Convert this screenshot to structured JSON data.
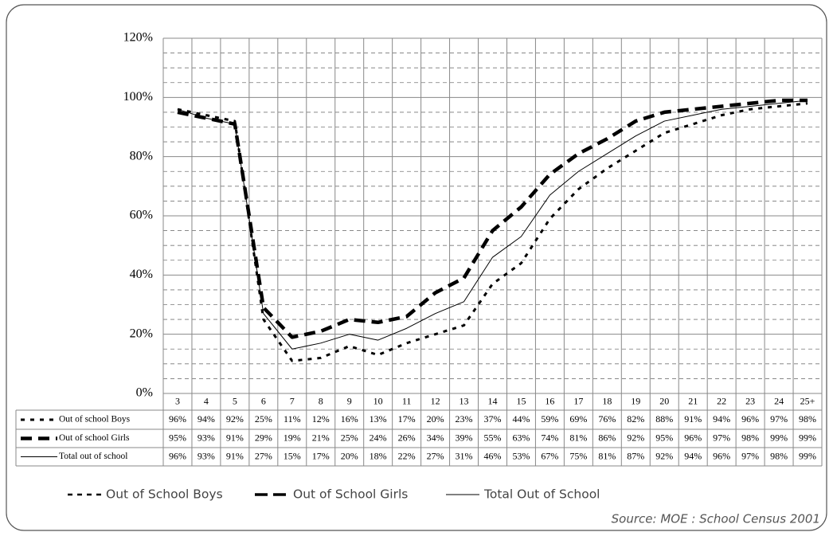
{
  "chart_data": {
    "type": "line",
    "categories": [
      "3",
      "4",
      "5",
      "6",
      "7",
      "8",
      "9",
      "10",
      "11",
      "12",
      "13",
      "14",
      "15",
      "16",
      "17",
      "18",
      "19",
      "20",
      "21",
      "22",
      "23",
      "24",
      "25+"
    ],
    "series": [
      {
        "name": "Out of school Boys",
        "color": "#000000",
        "values": [
          96,
          94,
          92,
          25,
          11,
          12,
          16,
          13,
          17,
          20,
          23,
          37,
          44,
          59,
          69,
          76,
          82,
          88,
          91,
          94,
          96,
          97,
          98
        ],
        "value_labels": [
          "96%",
          "94%",
          "92%",
          "25%",
          "11%",
          "12%",
          "16%",
          "13%",
          "17%",
          "20%",
          "23%",
          "37%",
          "44%",
          "59%",
          "69%",
          "76%",
          "82%",
          "88%",
          "91%",
          "94%",
          "96%",
          "97%",
          "98%"
        ]
      },
      {
        "name": "Out of school Girls",
        "color": "#000000",
        "values": [
          95,
          93,
          91,
          29,
          19,
          21,
          25,
          24,
          26,
          34,
          39,
          55,
          63,
          74,
          81,
          86,
          92,
          95,
          96,
          97,
          98,
          99,
          99
        ],
        "value_labels": [
          "95%",
          "93%",
          "91%",
          "29%",
          "19%",
          "21%",
          "25%",
          "24%",
          "26%",
          "34%",
          "39%",
          "55%",
          "63%",
          "74%",
          "81%",
          "86%",
          "92%",
          "95%",
          "96%",
          "97%",
          "98%",
          "99%",
          "99%"
        ]
      },
      {
        "name": "Total out of school",
        "color": "#000000",
        "values": [
          96,
          93,
          91,
          27,
          15,
          17,
          20,
          18,
          22,
          27,
          31,
          46,
          53,
          67,
          75,
          81,
          87,
          92,
          94,
          96,
          97,
          98,
          99
        ],
        "value_labels": [
          "96%",
          "93%",
          "91%",
          "27%",
          "15%",
          "17%",
          "20%",
          "18%",
          "22%",
          "27%",
          "31%",
          "46%",
          "53%",
          "67%",
          "75%",
          "81%",
          "87%",
          "92%",
          "94%",
          "96%",
          "97%",
          "98%",
          "99%"
        ]
      }
    ],
    "legend_labels": [
      "Out of School  Boys",
      "Out of School  Girls",
      "Total Out of School"
    ],
    "ylim": [
      0,
      120
    ],
    "yticks": [
      {
        "value": 0,
        "label": "0%"
      },
      {
        "value": 20,
        "label": "20%"
      },
      {
        "value": 40,
        "label": "40%"
      },
      {
        "value": 60,
        "label": "60%"
      },
      {
        "value": 80,
        "label": "80%"
      },
      {
        "value": 100,
        "label": "100%"
      },
      {
        "value": 120,
        "label": "120%"
      }
    ],
    "minor_yticks": [
      5,
      10,
      15,
      25,
      30,
      35,
      45,
      50,
      55,
      65,
      70,
      75,
      85,
      90,
      95,
      105,
      110,
      115
    ],
    "grid": true,
    "source": "Source: MOE : School Census 2001"
  }
}
